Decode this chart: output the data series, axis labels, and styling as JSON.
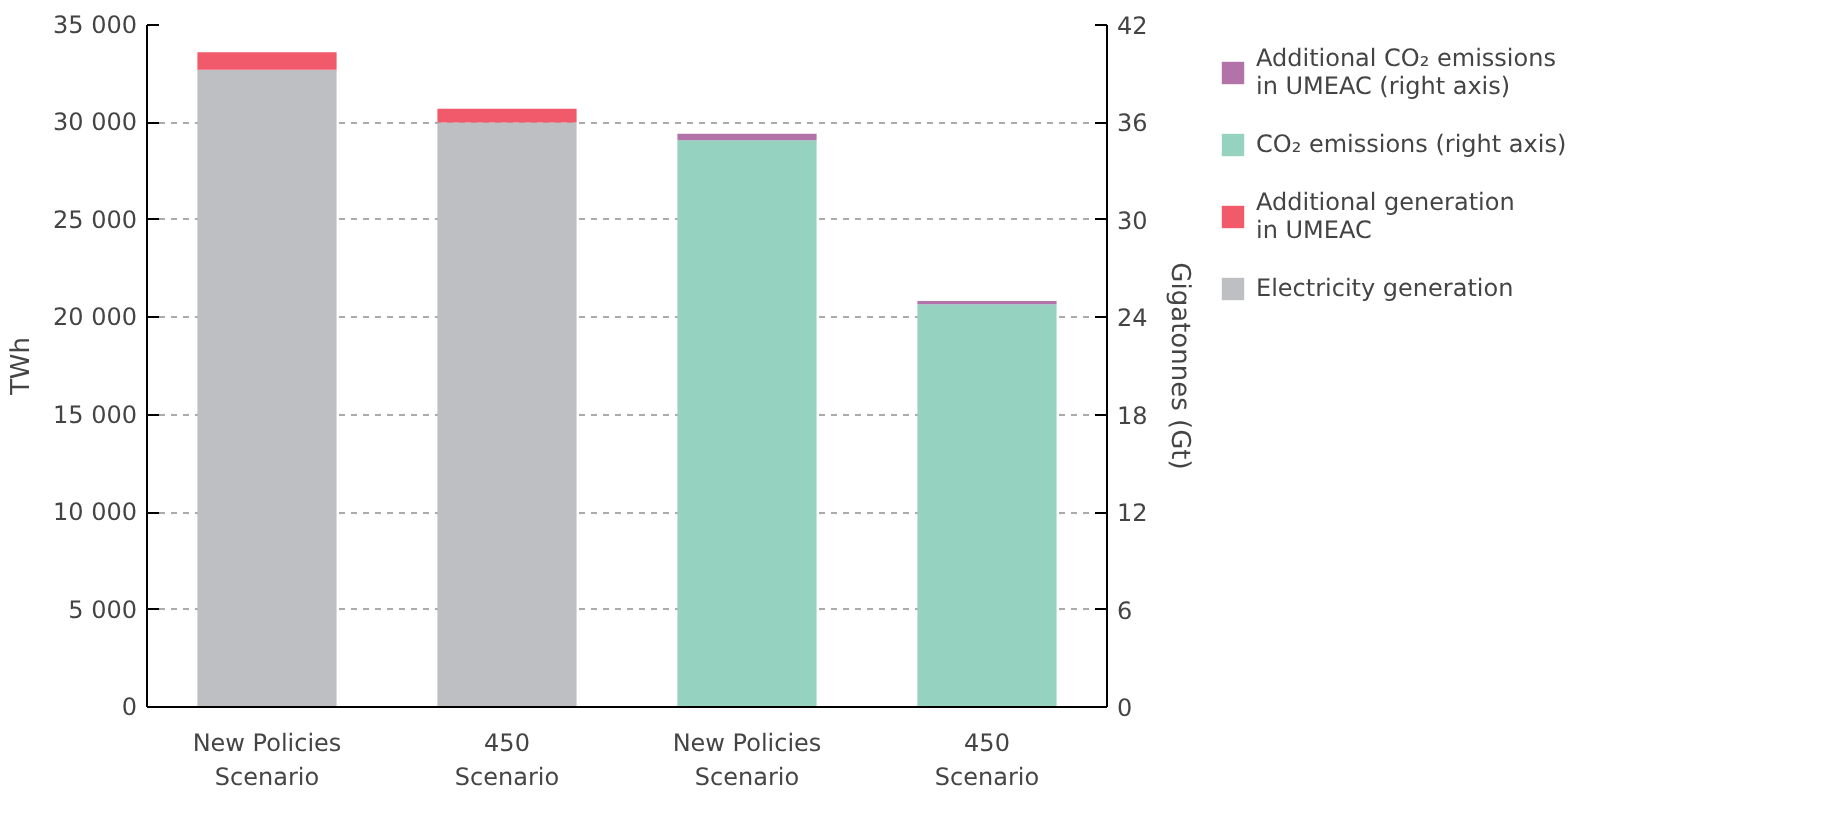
{
  "chart_data": {
    "type": "bar",
    "stacked": true,
    "categories": [
      "New Policies\nScenario",
      "450\nScenario",
      "New Policies\nScenario",
      "450\nScenario"
    ],
    "ylabel": "TWh",
    "y2label": "Gigatonnes (Gt)",
    "ylim": [
      0,
      35000
    ],
    "yticks": [
      {
        "value": 0,
        "label": "0"
      },
      {
        "value": 5000,
        "label": "5 000"
      },
      {
        "value": 10000,
        "label": "10 000"
      },
      {
        "value": 15000,
        "label": "15 000"
      },
      {
        "value": 20000,
        "label": "20 000"
      },
      {
        "value": 25000,
        "label": "25 000"
      },
      {
        "value": 30000,
        "label": "30 000"
      },
      {
        "value": 35000,
        "label": "35 000"
      }
    ],
    "y2lim": [
      0,
      42
    ],
    "y2ticks": [
      0,
      6,
      12,
      18,
      24,
      30,
      36,
      42
    ],
    "series": [
      {
        "name": "Electricity generation",
        "color": "#bebfc3",
        "values": [
          32700,
          30000,
          null,
          null
        ]
      },
      {
        "name": "Additional generation\nin UMEAC",
        "color": "#f05a6a",
        "values": [
          900,
          700,
          null,
          null
        ]
      },
      {
        "name": "CO₂ emissions (right axis)",
        "color": "#95d3c0",
        "axis": "y2",
        "values": [
          null,
          null,
          34.9,
          24.8
        ]
      },
      {
        "name": "Additional CO₂ emissions\nin UMEAC (right axis)",
        "color": "#b273a8",
        "axis": "y2",
        "values": [
          null,
          null,
          0.4,
          0.2
        ]
      }
    ],
    "grid": "y",
    "legend": "right"
  }
}
